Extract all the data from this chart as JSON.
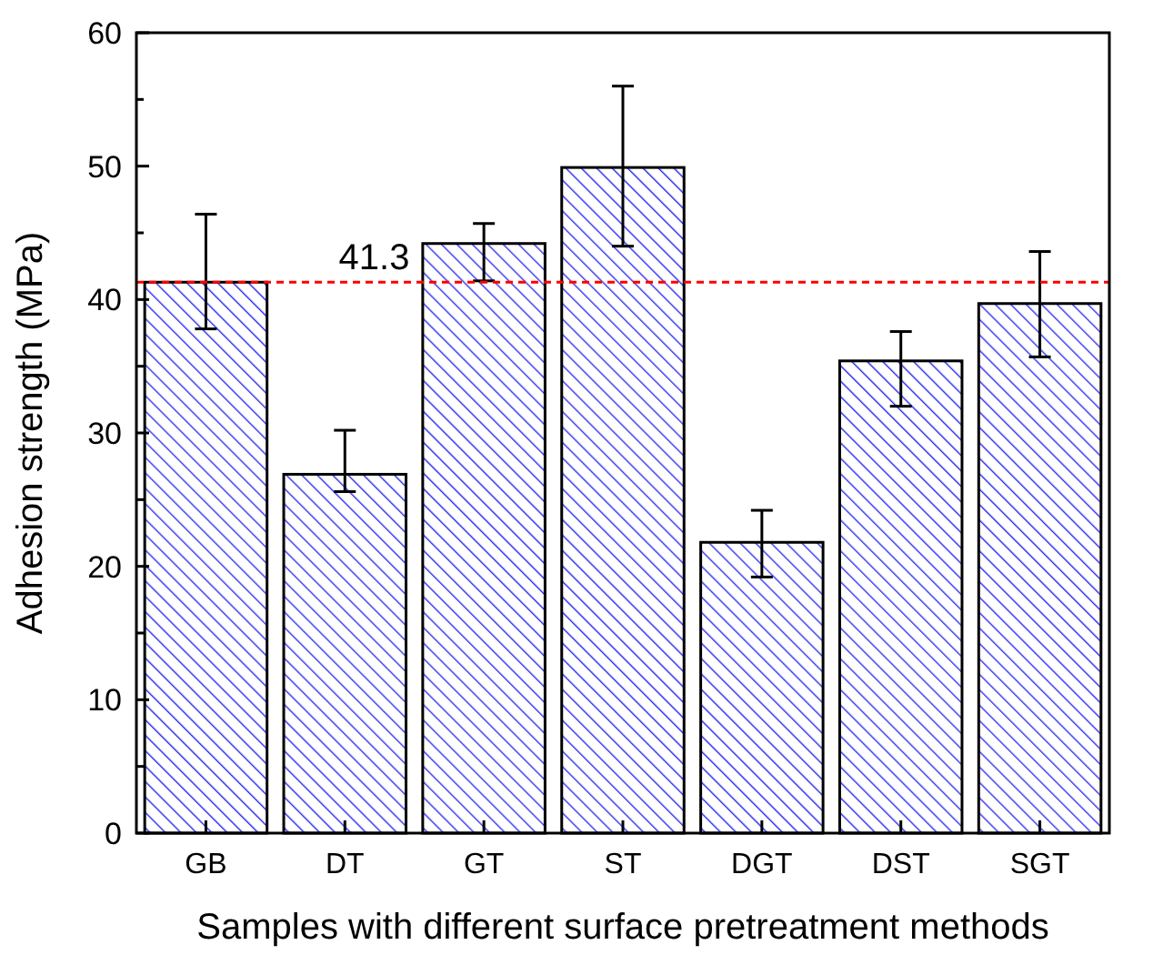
{
  "chart_data": {
    "type": "bar",
    "xlabel": "Samples with different surface pretreatment methods",
    "ylabel": "Adhesion strength (MPa)",
    "categories": [
      "GB",
      "DT",
      "GT",
      "ST",
      "DGT",
      "DST",
      "SGT"
    ],
    "values": [
      41.3,
      26.9,
      44.2,
      49.9,
      21.8,
      35.4,
      39.7
    ],
    "errors": [
      [
        37.8,
        46.4
      ],
      [
        25.6,
        30.2
      ],
      [
        41.4,
        45.7
      ],
      [
        44.0,
        56.0
      ],
      [
        19.2,
        24.2
      ],
      [
        32.0,
        37.6
      ],
      [
        35.7,
        43.6
      ]
    ],
    "color": "#2b2bf0",
    "ylim": [
      0,
      60
    ],
    "yticks": [
      0,
      {
        "value": 5,
        "label": null
      },
      10,
      {
        "value": 15,
        "label": null
      },
      20,
      {
        "value": 25,
        "label": null
      },
      30,
      {
        "value": 35,
        "label": null
      },
      40,
      {
        "value": 45,
        "label": null
      },
      50,
      {
        "value": 55,
        "label": null
      },
      60
    ],
    "ref_lines": [
      {
        "axis": "y",
        "value": 41.3,
        "label": "41.3",
        "color": "#ff0000",
        "line_style": "dashed"
      }
    ],
    "grid": false
  }
}
